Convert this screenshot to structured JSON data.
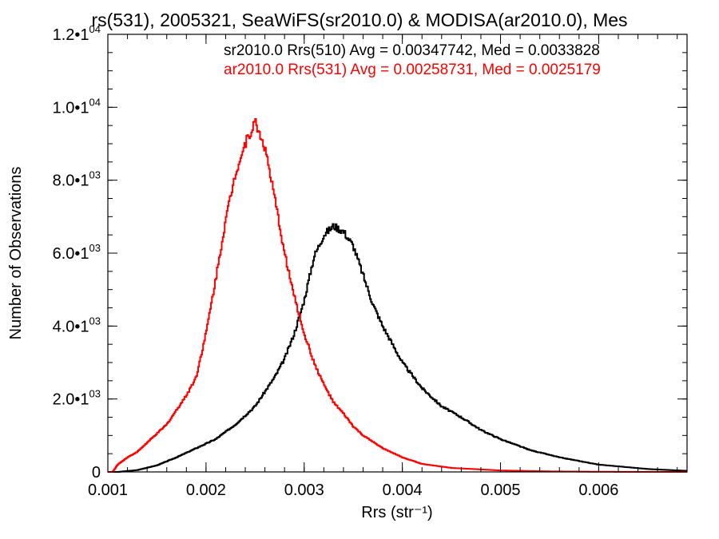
{
  "chart_data": {
    "type": "histogram",
    "title": "rs(531), 2005321, SeaWiFS(sr2010.0) & MODISA(ar2010.0), Mes",
    "xlabel": "Rrs (str⁻¹)",
    "ylabel": "Number of Observations",
    "xlim": [
      0.001,
      0.0069
    ],
    "ylim": [
      0,
      12000
    ],
    "x_ticks": [
      {
        "value": 0.001,
        "label": "0.001"
      },
      {
        "value": 0.002,
        "label": "0.002"
      },
      {
        "value": 0.003,
        "label": "0.003"
      },
      {
        "value": 0.004,
        "label": "0.004"
      },
      {
        "value": 0.005,
        "label": "0.005"
      },
      {
        "value": 0.006,
        "label": "0.006"
      }
    ],
    "y_ticks": [
      {
        "value": 0,
        "label": "0",
        "exp": ""
      },
      {
        "value": 2000,
        "label": "2.0•1",
        "exp": "3"
      },
      {
        "value": 4000,
        "label": "4.0•1",
        "exp": "3"
      },
      {
        "value": 6000,
        "label": "6.0•1",
        "exp": "3"
      },
      {
        "value": 8000,
        "label": "8.0•1",
        "exp": "3"
      },
      {
        "value": 10000,
        "label": "1.0•1",
        "exp": "4"
      },
      {
        "value": 12000,
        "label": "1.2•1",
        "exp": "4"
      }
    ],
    "grid": false,
    "legend_position": "top-right",
    "series": [
      {
        "name": "sr2010.0 Rrs(510) Avg = 0.00347742, Med = 0.0033828",
        "color": "#000000",
        "x": [
          0.0011,
          0.0013,
          0.0015,
          0.0017,
          0.0019,
          0.0021,
          0.0023,
          0.0025,
          0.0027,
          0.0028,
          0.0029,
          0.003,
          0.0031,
          0.0032,
          0.0033,
          0.0034,
          0.0035,
          0.0036,
          0.0037,
          0.0038,
          0.0039,
          0.004,
          0.0042,
          0.0044,
          0.0046,
          0.0048,
          0.005,
          0.0053,
          0.0056,
          0.006,
          0.0065,
          0.0069
        ],
        "y": [
          0,
          50,
          180,
          400,
          650,
          900,
          1300,
          1800,
          2600,
          3100,
          3800,
          4700,
          5900,
          6500,
          6750,
          6600,
          6200,
          5400,
          4600,
          4000,
          3500,
          3000,
          2300,
          1800,
          1500,
          1150,
          900,
          600,
          400,
          200,
          80,
          30
        ]
      },
      {
        "name": "ar2010.0 Rrs(531) Avg = 0.00258731, Med = 0.0025179",
        "color": "#ff0000",
        "x": [
          0.00105,
          0.0011,
          0.0012,
          0.0013,
          0.0014,
          0.0015,
          0.0016,
          0.0017,
          0.0018,
          0.0019,
          0.002,
          0.0021,
          0.0022,
          0.0023,
          0.0024,
          0.0025,
          0.0026,
          0.0027,
          0.0028,
          0.0029,
          0.003,
          0.0031,
          0.0032,
          0.0033,
          0.0034,
          0.0035,
          0.0036,
          0.0038,
          0.004,
          0.0042,
          0.0045,
          0.005,
          0.0055,
          0.006,
          0.0065
        ],
        "y": [
          0,
          200,
          400,
          550,
          800,
          1050,
          1300,
          1700,
          2100,
          2600,
          3800,
          5300,
          6900,
          8200,
          9000,
          9600,
          8900,
          7500,
          6000,
          4800,
          3800,
          3000,
          2400,
          1900,
          1600,
          1250,
          1000,
          650,
          400,
          220,
          110,
          40,
          15,
          5,
          2
        ]
      }
    ]
  }
}
